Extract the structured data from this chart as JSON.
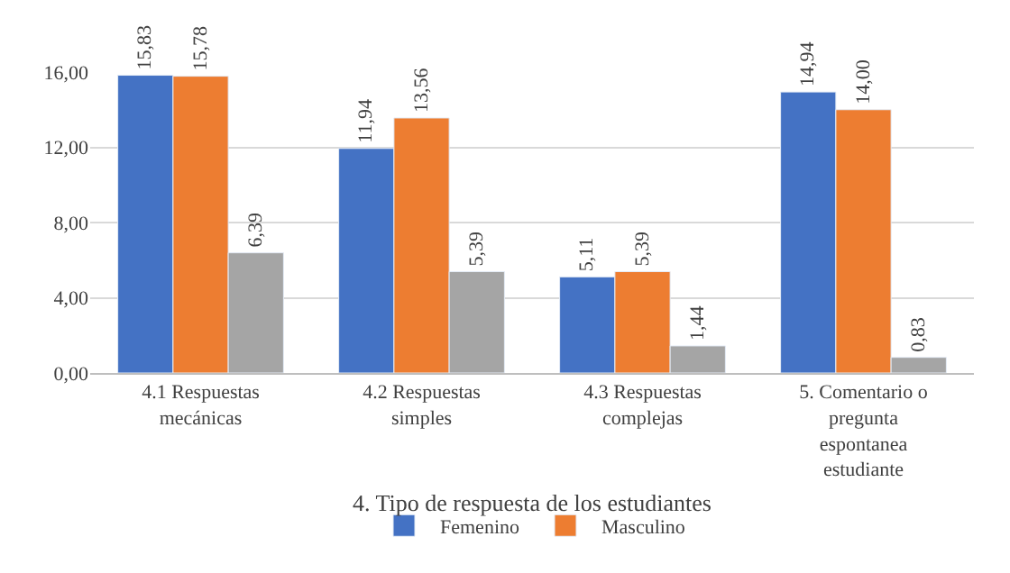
{
  "chart_data": {
    "type": "bar",
    "xlabel": "4. Tipo de respuesta de los estudiantes",
    "categories": [
      "4.1 Respuestas mecánicas",
      "4.2 Respuestas simples",
      "4.3 Respuestas complejas",
      "5. Comentario o pregunta espontanea estudiante"
    ],
    "series": [
      {
        "name": "Femenino",
        "color": "#4472c4",
        "values": [
          15.83,
          11.94,
          5.11,
          14.94
        ],
        "value_labels": [
          "15,83",
          "11,94",
          "5,11",
          "14,94"
        ]
      },
      {
        "name": "Masculino",
        "color": "#ed7d31",
        "values": [
          15.78,
          13.56,
          5.39,
          14.0
        ],
        "value_labels": [
          "15,78",
          "13,56",
          "5,39",
          "14,00"
        ]
      },
      {
        "color": "#a5a5a5",
        "values": [
          6.39,
          5.39,
          1.44,
          0.83
        ],
        "value_labels": [
          "6,39",
          "5,39",
          "1,44",
          "0,83"
        ]
      }
    ],
    "ylim": [
      0,
      16
    ],
    "yticks": [
      {
        "value": 0,
        "label": "0,00"
      },
      {
        "value": 4,
        "label": "4,00"
      },
      {
        "value": 8,
        "label": "8,00"
      },
      {
        "value": 12,
        "label": "12,00"
      },
      {
        "value": 16,
        "label": "16,00"
      }
    ],
    "grid": "y",
    "legend": "bottom"
  }
}
